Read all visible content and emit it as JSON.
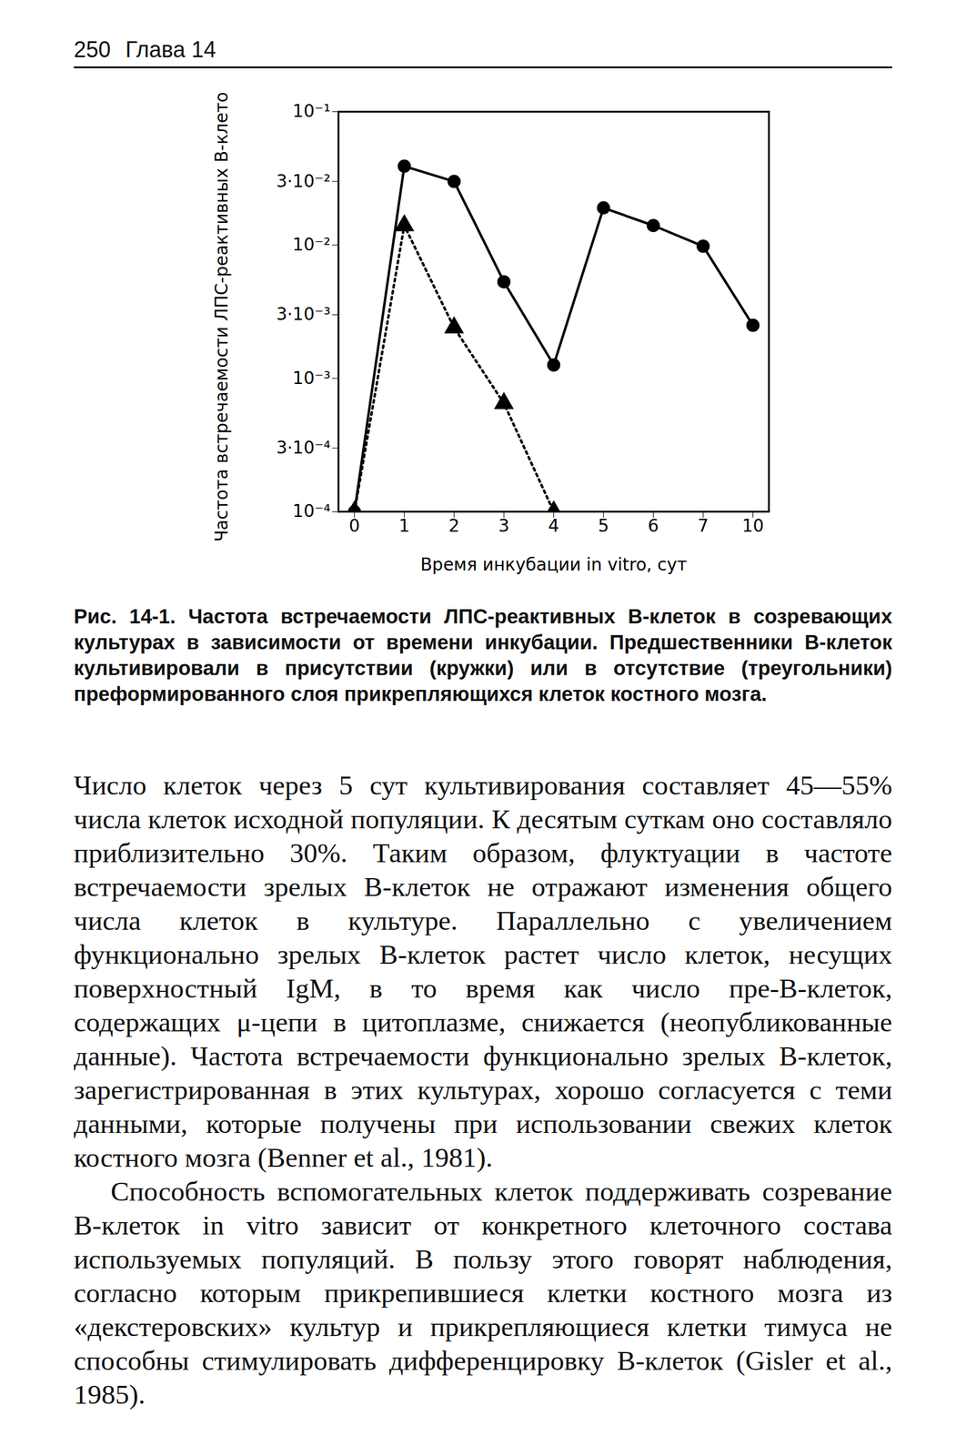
{
  "header": {
    "page": "250",
    "chapter": "Глава 14"
  },
  "chart_data": {
    "type": "line",
    "x_label": "Время инкубации in vitro, сут",
    "y_label": "Частота встречаемости ЛПС-реактивных В-клеток",
    "categories": [
      0,
      1,
      2,
      3,
      4,
      5,
      6,
      7,
      10
    ],
    "series": [
      {
        "color": "#000000",
        "marker": "circle",
        "line_style": "solid",
        "values": [
          0.0001,
          0.039,
          0.03,
          0.0053,
          0.00126,
          0.019,
          0.014,
          0.0098,
          0.0025
        ]
      },
      {
        "color": "#000000",
        "marker": "triangle",
        "line_style": "dotted",
        "values": [
          0.0001,
          0.014,
          0.0024,
          0.00065,
          0.0001,
          null,
          null,
          null,
          null
        ]
      }
    ],
    "log": "y",
    "grid": false,
    "ylim": [
      0.0001,
      0.1
    ],
    "yticks": [
      {
        "value": 0.0001,
        "label": "10⁻⁴"
      },
      {
        "value": 0.0003,
        "label": "3·10⁻⁴"
      },
      {
        "value": 0.001,
        "label": "10⁻³"
      },
      {
        "value": 0.003,
        "label": "3·10⁻³"
      },
      {
        "value": 0.01,
        "label": "10⁻²"
      },
      {
        "value": 0.03,
        "label": "3·10⁻²"
      },
      {
        "value": 0.1,
        "label": "10⁻¹"
      }
    ]
  },
  "caption": "Рис. 14-1. Частота встречаемости ЛПС-реактивных В-клеток в созревающих культурах в зависимости от времени инкубации. Предшественники В-клеток культивировали в присутствии (кружки) или в отсутствие (треугольники) преформированного слоя прикрепляющихся клеток костного мозга.",
  "paragraphs": [
    "Число клеток через 5 сут культивирования составляет 45—55% числа клеток исходной популяции. К десятым суткам оно составляло приблизительно 30%. Таким образом, флуктуации в частоте встречаемости зрелых В-клеток не отражают изменения общего числа клеток в культуре. Параллельно с увеличением функционально зрелых В-клеток растет число клеток, несущих поверхностный IgM, в то время как число пре-В-клеток, содержащих μ-цепи в цитоплазме, снижается (неопубликованные данные). Частота встречаемости функционально зрелых В-клеток, зарегистрированная в этих культурах, хорошо согласуется с теми данными, которые получены при использовании свежих клеток костного мозга (Benner et al., 1981).",
    "Способность вспомогательных клеток поддерживать созревание В-клеток in vitro зависит от конкретного клеточного состава используемых популяций. В пользу этого говорят наблюдения, согласно которым прикрепившиеся клетки костного мозга из «декстеровских» культур и прикрепляющиеся клетки тимуса не способны стимулировать дифференцировку В-клеток (Gisler et al., 1985)."
  ]
}
